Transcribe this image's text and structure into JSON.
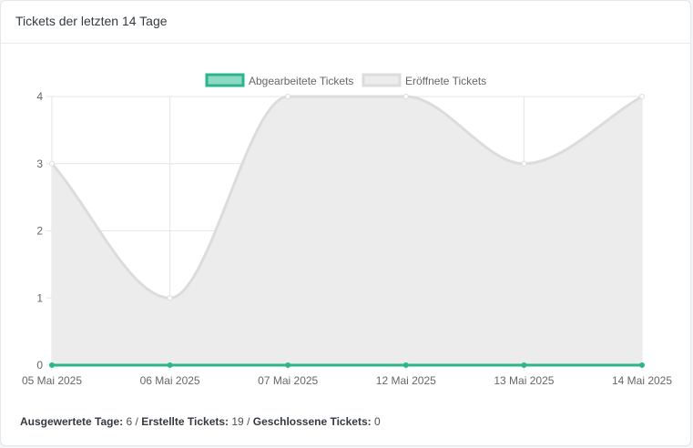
{
  "card": {
    "title": "Tickets der letzten 14 Tage"
  },
  "chart_data": {
    "type": "line",
    "categories": [
      "05 Mai 2025",
      "06 Mai 2025",
      "07 Mai 2025",
      "12 Mai 2025",
      "13 Mai 2025",
      "14 Mai 2025"
    ],
    "series": [
      {
        "name": "Abgearbeitete Tickets",
        "values": [
          0,
          0,
          0,
          0,
          0,
          0
        ],
        "color": "#2bb58a",
        "fill": "#8dd9c3"
      },
      {
        "name": "Eröffnete Tickets",
        "values": [
          3,
          1,
          4,
          4,
          3,
          4
        ],
        "color": "#dcdcdc",
        "fill": "#ececec"
      }
    ],
    "yticks": [
      0,
      1,
      2,
      3,
      4
    ],
    "ylim": [
      0,
      4
    ],
    "grid": true,
    "legend": "top-center",
    "smooth": true
  },
  "footer": {
    "days_label": "Ausgewertete Tage:",
    "days_value": "6",
    "created_label": "Erstellte Tickets:",
    "created_value": "19",
    "closed_label": "Geschlossene Tickets:",
    "closed_value": "0",
    "separator": "/"
  }
}
